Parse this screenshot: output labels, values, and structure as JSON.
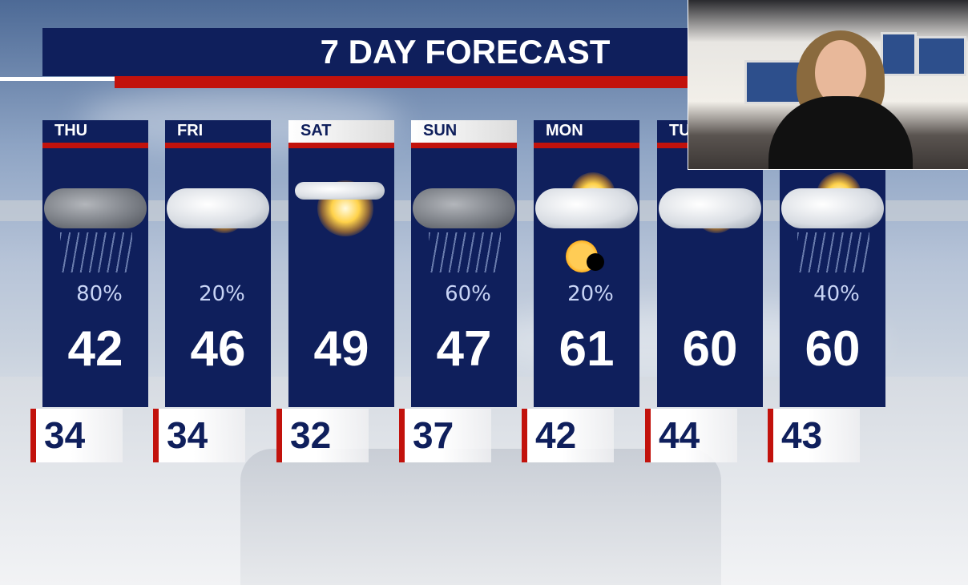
{
  "title": "7 DAY FORECAST",
  "colors": {
    "navy": "#0f1f5c",
    "red": "#c2120c",
    "pop_text": "#c8d4f5"
  },
  "days": [
    {
      "label": "THU",
      "icon": "rain-snow-cloud-icon",
      "pop": "80%",
      "high": "42",
      "low": "34",
      "highlight": false
    },
    {
      "label": "FRI",
      "icon": "partly-sunny-icon",
      "pop": "20%",
      "high": "46",
      "low": "34",
      "highlight": false
    },
    {
      "label": "SAT",
      "icon": "mostly-sunny-icon",
      "pop": "",
      "high": "49",
      "low": "32",
      "highlight": true
    },
    {
      "label": "SUN",
      "icon": "rain-cloud-icon",
      "pop": "60%",
      "high": "47",
      "low": "37",
      "highlight": true
    },
    {
      "label": "MON",
      "icon": "partly-cloudy-eclipse-icon",
      "pop": "20%",
      "high": "61",
      "low": "42",
      "highlight": false
    },
    {
      "label": "TU",
      "icon": "partly-sunny-icon",
      "pop": "",
      "high": "60",
      "low": "44",
      "highlight": false
    },
    {
      "label": "",
      "icon": "partly-sunny-showers-icon",
      "pop": "40%",
      "high": "60",
      "low": "43",
      "highlight": false
    }
  ],
  "inset": {
    "content": "presenter-video-feed"
  }
}
